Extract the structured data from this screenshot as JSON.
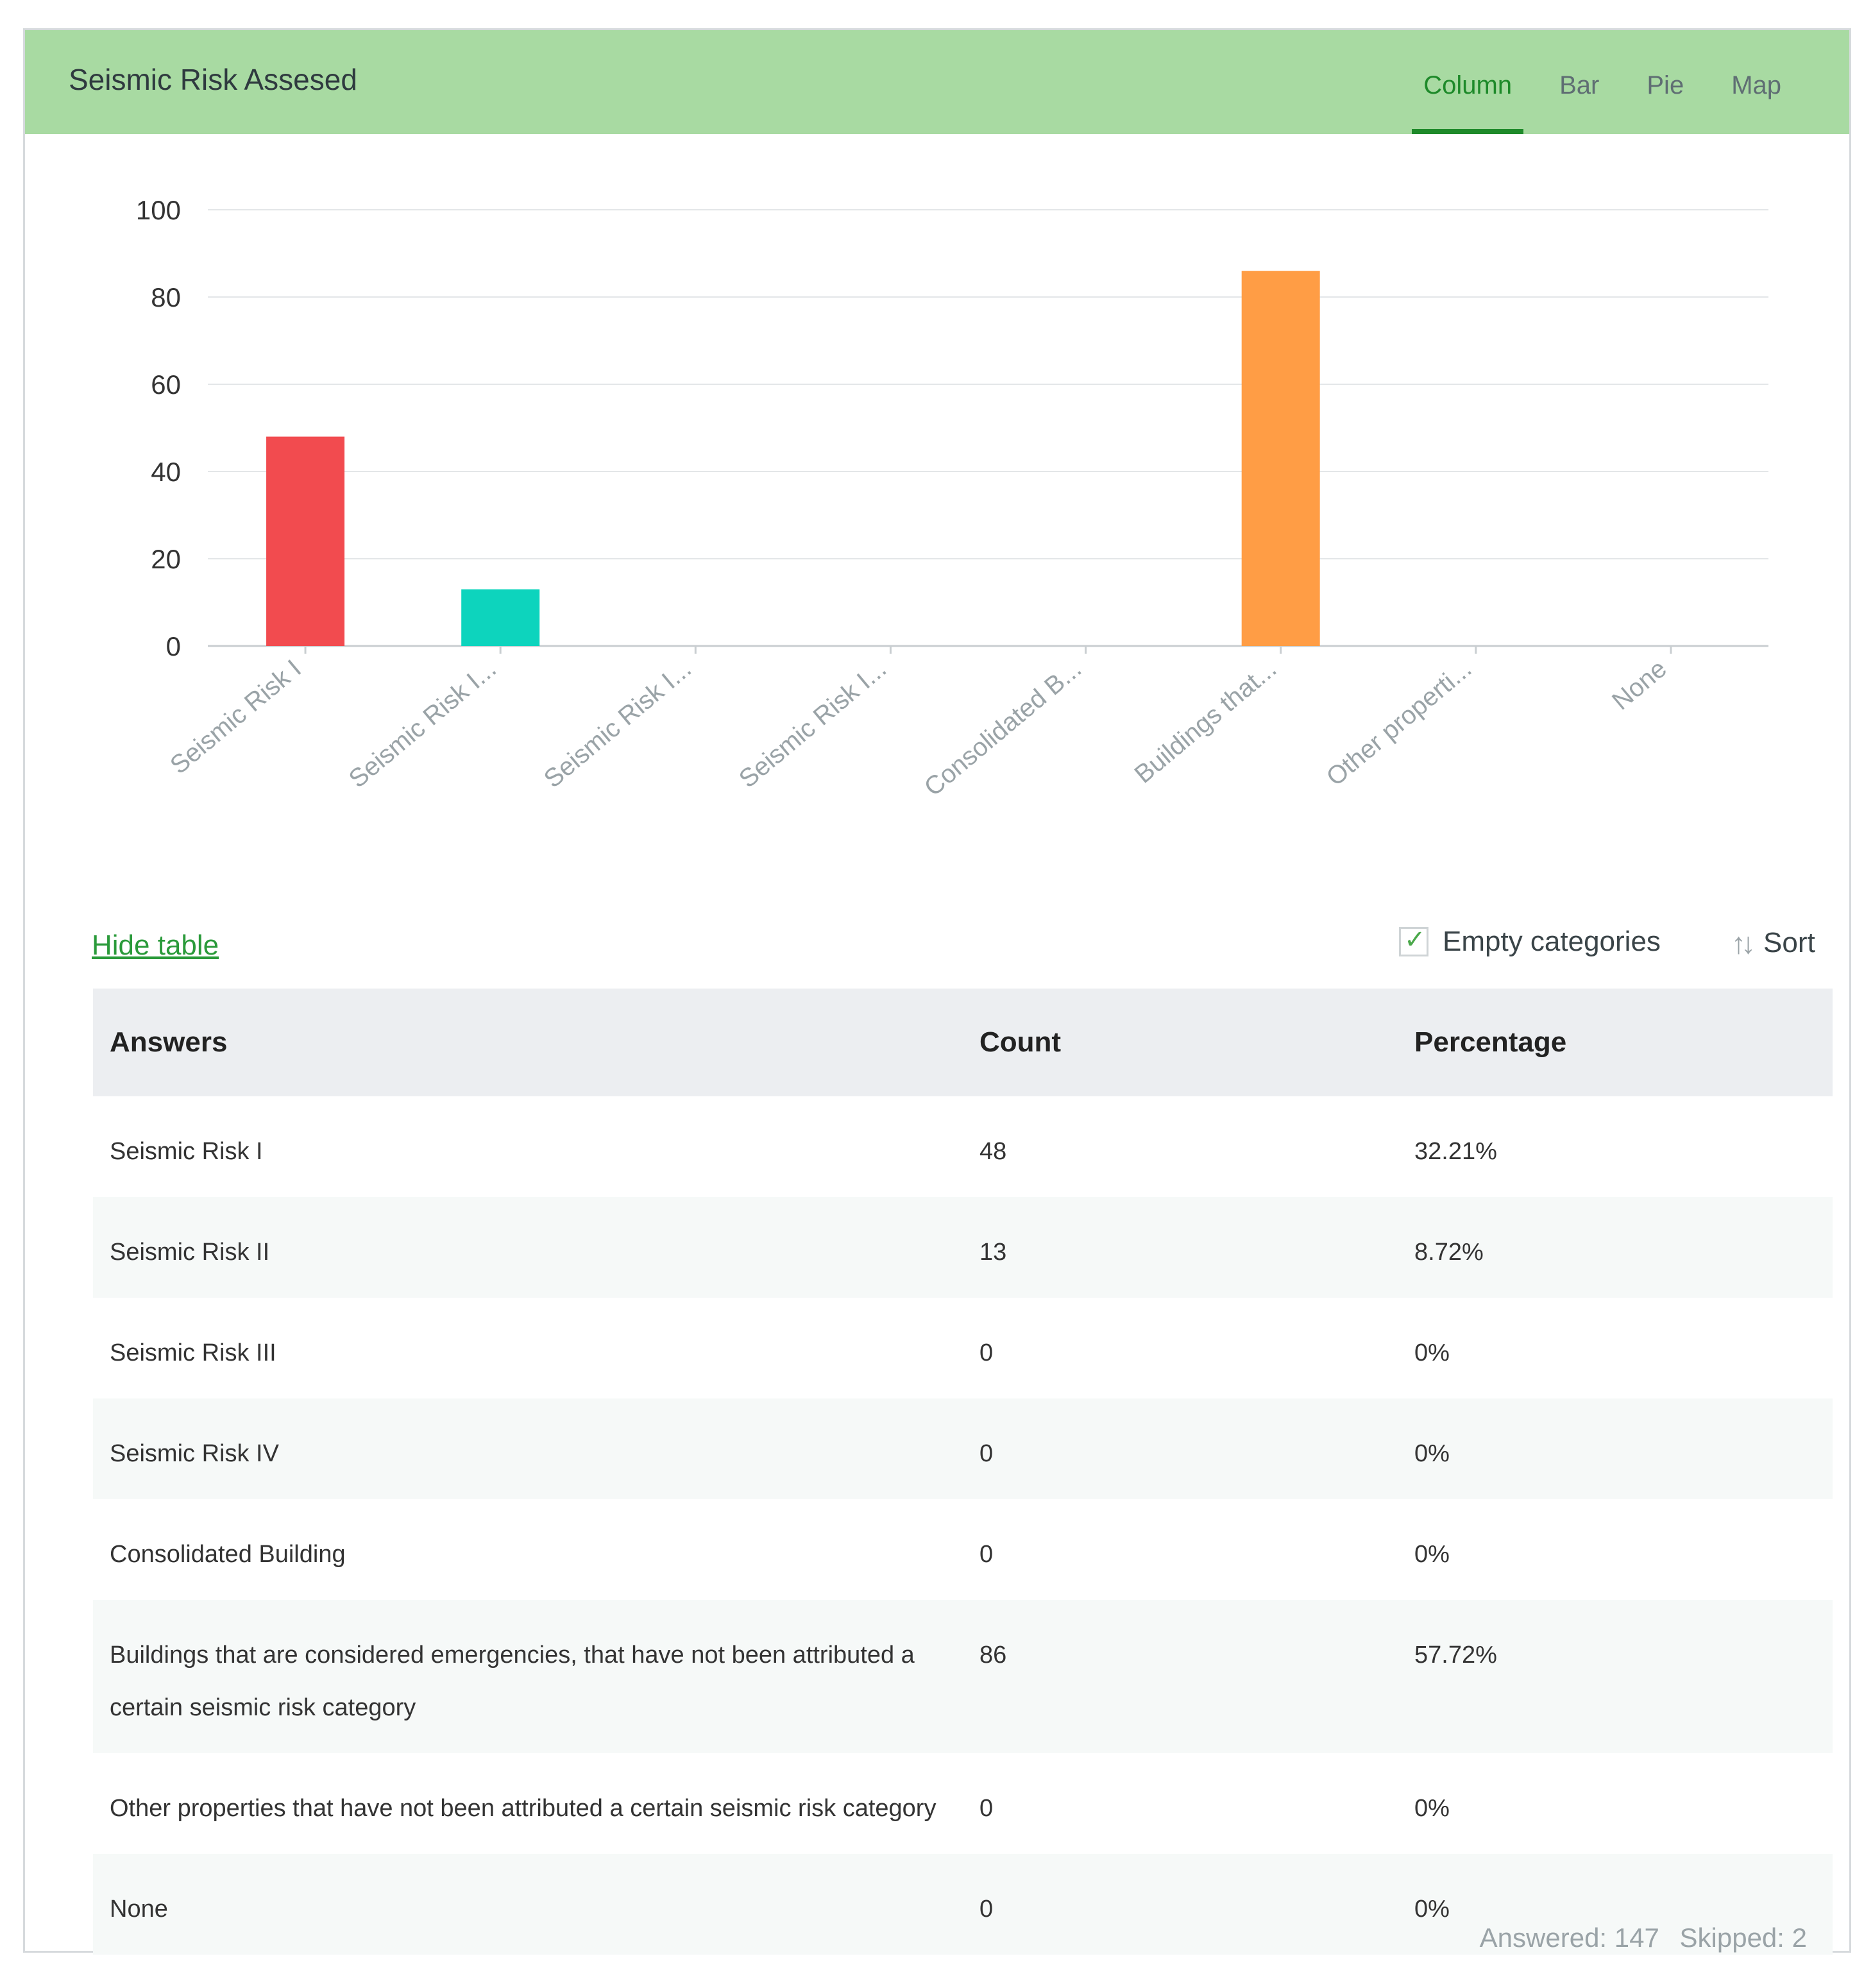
{
  "card": {
    "title": "Seismic Risk Assesed",
    "tabs": [
      {
        "label": "Column",
        "active": true
      },
      {
        "label": "Bar",
        "active": false
      },
      {
        "label": "Pie",
        "active": false
      },
      {
        "label": "Map",
        "active": false
      }
    ]
  },
  "chart_data": {
    "type": "bar",
    "categories": [
      "Seismic Risk I",
      "Seismic Risk I...",
      "Seismic Risk I...",
      "Seismic Risk I...",
      "Consolidated B...",
      "Buildings that...",
      "Other properti...",
      "None"
    ],
    "values": [
      48,
      13,
      0,
      0,
      0,
      86,
      0,
      0
    ],
    "colors": [
      "#f24b4f",
      "#0dd4bd",
      "#888888",
      "#888888",
      "#888888",
      "#ff9d45",
      "#888888",
      "#888888"
    ],
    "yticks": [
      0,
      20,
      40,
      60,
      80,
      100
    ],
    "ylim": [
      0,
      100
    ],
    "grid": true
  },
  "controls": {
    "hide_table": "Hide table",
    "empty_categories": "Empty categories",
    "empty_categories_checked": true,
    "sort": "Sort"
  },
  "table": {
    "headers": {
      "answers": "Answers",
      "count": "Count",
      "percentage": "Percentage"
    },
    "rows": [
      {
        "answer": "Seismic Risk I",
        "count": "48",
        "percentage": "32.21%"
      },
      {
        "answer": "Seismic Risk II",
        "count": "13",
        "percentage": "8.72%"
      },
      {
        "answer": "Seismic Risk III",
        "count": "0",
        "percentage": "0%"
      },
      {
        "answer": "Seismic Risk IV",
        "count": "0",
        "percentage": "0%"
      },
      {
        "answer": "Consolidated Building",
        "count": "0",
        "percentage": "0%"
      },
      {
        "answer": "Buildings that are considered emergencies, that have not been attributed a certain seismic risk category",
        "count": "86",
        "percentage": "57.72%"
      },
      {
        "answer": "Other properties that have not been attributed a certain seismic risk category",
        "count": "0",
        "percentage": "0%"
      },
      {
        "answer": "None",
        "count": "0",
        "percentage": "0%"
      }
    ]
  },
  "footer": {
    "answered": "Answered: 147",
    "skipped": "Skipped: 2"
  }
}
